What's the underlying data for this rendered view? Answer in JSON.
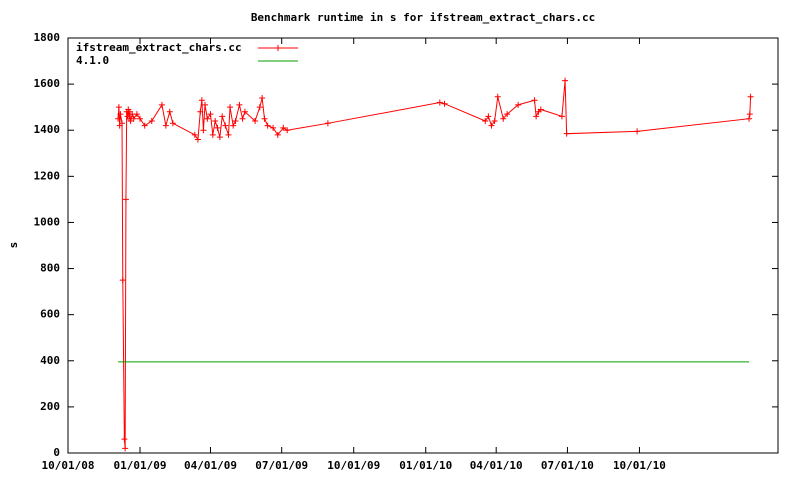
{
  "chart_data": {
    "type": "line",
    "title": "Benchmark runtime in s for ifstream_extract_chars.cc",
    "y_label": "s",
    "xlim": [
      "2008-10-01",
      "2011-03-27"
    ],
    "xticks": [
      {
        "value": "2008-10-01",
        "label": "10/01/08"
      },
      {
        "value": "2009-01-01",
        "label": "01/01/09"
      },
      {
        "value": "2009-04-01",
        "label": "04/01/09"
      },
      {
        "value": "2009-07-01",
        "label": "07/01/09"
      },
      {
        "value": "2009-10-01",
        "label": "10/01/09"
      },
      {
        "value": "2010-01-01",
        "label": "01/01/10"
      },
      {
        "value": "2010-04-01",
        "label": "04/01/10"
      },
      {
        "value": "2010-07-01",
        "label": "07/01/10"
      },
      {
        "value": "2010-10-01",
        "label": "10/01/10"
      }
    ],
    "ylim": [
      0,
      1800
    ],
    "yticks": [
      0,
      200,
      400,
      600,
      800,
      1000,
      1200,
      1400,
      1600,
      1800
    ],
    "legend": "top-left",
    "series": [
      {
        "name": "ifstream_extract_chars.cc",
        "color": "#ff0000",
        "markers": true,
        "x": [
          "2008-12-04",
          "2008-12-05",
          "2008-12-06",
          "2008-12-07",
          "2008-12-09",
          "2008-12-10",
          "2008-12-12",
          "2008-12-13",
          "2008-12-14",
          "2008-12-15",
          "2008-12-16",
          "2008-12-17",
          "2008-12-18",
          "2008-12-19",
          "2008-12-20",
          "2008-12-22",
          "2008-12-24",
          "2008-12-28",
          "2009-01-01",
          "2009-01-07",
          "2009-01-16",
          "2009-01-29",
          "2009-02-03",
          "2009-02-08",
          "2009-02-12",
          "2009-03-12",
          "2009-03-16",
          "2009-03-19",
          "2009-03-21",
          "2009-03-23",
          "2009-03-25",
          "2009-03-28",
          "2009-04-01",
          "2009-04-04",
          "2009-04-07",
          "2009-04-10",
          "2009-04-13",
          "2009-04-16",
          "2009-04-20",
          "2009-04-24",
          "2009-04-26",
          "2009-04-30",
          "2009-05-03",
          "2009-05-08",
          "2009-05-12",
          "2009-05-15",
          "2009-05-28",
          "2009-06-03",
          "2009-06-06",
          "2009-06-09",
          "2009-06-13",
          "2009-06-20",
          "2009-06-26",
          "2009-07-03",
          "2009-07-08",
          "2009-08-29",
          "2010-01-19",
          "2010-01-25",
          "2010-03-18",
          "2010-03-22",
          "2010-03-26",
          "2010-03-30",
          "2010-04-03",
          "2010-04-10",
          "2010-04-15",
          "2010-04-29",
          "2010-05-20",
          "2010-05-22",
          "2010-05-25",
          "2010-05-28",
          "2010-06-24",
          "2010-06-28",
          "2010-06-30",
          "2010-09-28",
          "2011-02-18",
          "2011-02-19",
          "2011-02-20"
        ],
        "values": [
          1450,
          1500,
          1420,
          1470,
          1430,
          750,
          60,
          20,
          1100,
          1480,
          1460,
          1490,
          1450,
          1480,
          1440,
          1470,
          1450,
          1470,
          1450,
          1420,
          1440,
          1510,
          1420,
          1480,
          1430,
          1380,
          1360,
          1480,
          1530,
          1400,
          1510,
          1450,
          1470,
          1380,
          1440,
          1410,
          1370,
          1460,
          1420,
          1380,
          1500,
          1420,
          1440,
          1510,
          1450,
          1480,
          1440,
          1500,
          1540,
          1450,
          1420,
          1410,
          1380,
          1410,
          1400,
          1430,
          1520,
          1515,
          1440,
          1460,
          1420,
          1440,
          1545,
          1450,
          1470,
          1510,
          1530,
          1460,
          1480,
          1490,
          1460,
          1615,
          1385,
          1395,
          1450,
          1470,
          1545
        ]
      },
      {
        "name": "4.1.0",
        "color": "#00a000",
        "markers": false,
        "x": [
          "2008-12-04",
          "2011-02-18"
        ],
        "values": [
          395,
          395
        ]
      }
    ]
  }
}
